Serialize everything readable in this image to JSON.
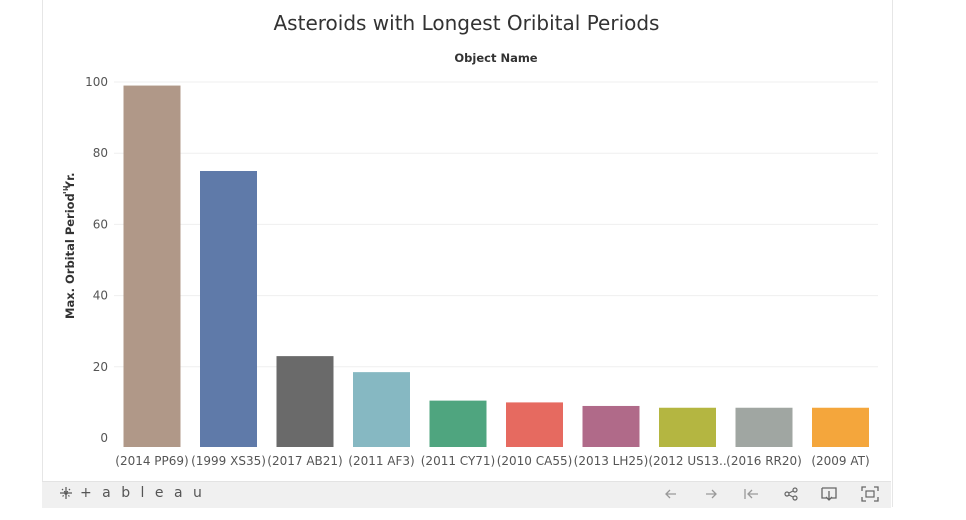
{
  "chart_data": {
    "type": "bar",
    "title": "Asteroids with Longest Oribital Periods",
    "column_header": "Object Name",
    "ylabel": "Max. Orbital Period Yr.",
    "xlabel": "",
    "ylim": [
      0,
      100
    ],
    "yticks": [
      0,
      20,
      40,
      60,
      80,
      100
    ],
    "grid": true,
    "categories": [
      "(2014 PP69)",
      "(1999 XS35)",
      "(2017 AB21)",
      "(2011 AF3)",
      "(2011 CY71)",
      "(2010 CA55)",
      "(2013 LH25)",
      "(2012 US13..",
      "(2016 RR20)",
      "(2009 AT)"
    ],
    "values": [
      99,
      75,
      23,
      18.5,
      10.5,
      10,
      9,
      8.5,
      8.5,
      8.5
    ],
    "colors": [
      "#b09888",
      "#5f7aa9",
      "#6a6a6a",
      "#86b8c2",
      "#4fa57f",
      "#e66a60",
      "#b06a89",
      "#b4b641",
      "#a0a6a2",
      "#f4a63c"
    ]
  },
  "toolbar": {
    "logo_text": "+ a b l e a u",
    "undo_icon": "undo-icon",
    "redo_icon": "redo-icon",
    "revert_icon": "revert-icon",
    "share_icon": "share-icon",
    "download_icon": "download-icon",
    "fullscreen_icon": "fullscreen-icon"
  }
}
